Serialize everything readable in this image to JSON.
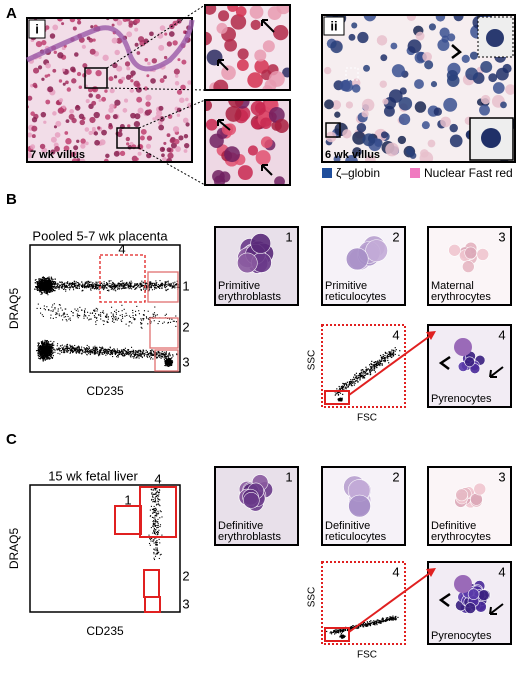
{
  "panel_a": {
    "letter": "A",
    "image_i": {
      "tag": "i",
      "caption": "7 wk villus"
    },
    "image_ii": {
      "tag": "ii",
      "caption": "6 wk villus"
    },
    "legend": [
      {
        "label": "ζ–globin",
        "color": "#1f4e9c"
      },
      {
        "label": "Nuclear Fast red",
        "color": "#f07ac0"
      }
    ]
  },
  "panel_b": {
    "letter": "B",
    "plot": {
      "title": "Pooled 5-7 wk placenta",
      "y_label": "DRAQ5",
      "x_label": "CD235",
      "gates": [
        "4",
        "1",
        "2",
        "3"
      ]
    },
    "cells": [
      {
        "number": "1",
        "label": [
          "Primitive",
          "erythroblasts"
        ]
      },
      {
        "number": "2",
        "label": [
          "Primitive",
          "reticulocytes"
        ]
      },
      {
        "number": "3",
        "label": [
          "Maternal",
          "erythrocytes"
        ]
      }
    ],
    "sub_plot": {
      "number": "4",
      "y_label": "SSC",
      "x_label": "FSC"
    },
    "pyrenocytes": {
      "number": "4",
      "label": "Pyrenocytes"
    }
  },
  "panel_c": {
    "letter": "C",
    "plot": {
      "title": "15 wk fetal liver",
      "y_label": "DRAQ5",
      "x_label": "CD235",
      "gates": [
        "4",
        "1",
        "2",
        "3"
      ]
    },
    "cells": [
      {
        "number": "1",
        "label": [
          "Definitive",
          "erythroblasts"
        ]
      },
      {
        "number": "2",
        "label": [
          "Definitive",
          "reticulocytes"
        ]
      },
      {
        "number": "3",
        "label": [
          "Definitive",
          "erythrocytes"
        ]
      }
    ],
    "sub_plot": {
      "number": "4",
      "y_label": "SSC",
      "x_label": "FSC"
    },
    "pyrenocytes": {
      "number": "4",
      "label": "Pyrenocytes"
    }
  }
}
